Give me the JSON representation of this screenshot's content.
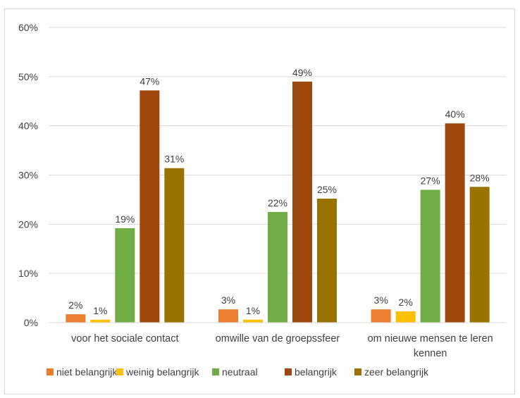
{
  "chart_data": {
    "type": "bar",
    "categories": [
      [
        "voor het sociale contact"
      ],
      [
        "omwille van de groepssfeer"
      ],
      [
        "om nieuwe mensen te leren",
        "kennen"
      ]
    ],
    "series": [
      {
        "name": "niet belangrijk",
        "color": "#ED7D31",
        "values": [
          1.7,
          2.7,
          2.7
        ],
        "labels": [
          "2%",
          "3%",
          "3%"
        ]
      },
      {
        "name": "weinig belangrijk",
        "color": "#FFC000",
        "values": [
          0.6,
          0.6,
          2.3
        ],
        "labels": [
          "1%",
          "1%",
          "2%"
        ]
      },
      {
        "name": "neutraal",
        "color": "#70AD47",
        "values": [
          19.2,
          22.5,
          27.0
        ],
        "labels": [
          "19%",
          "22%",
          "27%"
        ]
      },
      {
        "name": "belangrijk",
        "color": "#9E480E",
        "values": [
          47.2,
          49.0,
          40.5
        ],
        "labels": [
          "47%",
          "49%",
          "40%"
        ]
      },
      {
        "name": "zeer belangrijk",
        "color": "#997300",
        "values": [
          31.4,
          25.2,
          27.6
        ],
        "labels": [
          "31%",
          "25%",
          "28%"
        ]
      }
    ],
    "y_ticks": [
      "0%",
      "10%",
      "20%",
      "30%",
      "40%",
      "50%",
      "60%"
    ],
    "ylim": [
      0,
      60
    ],
    "grid": true,
    "legend_position": "bottom"
  }
}
